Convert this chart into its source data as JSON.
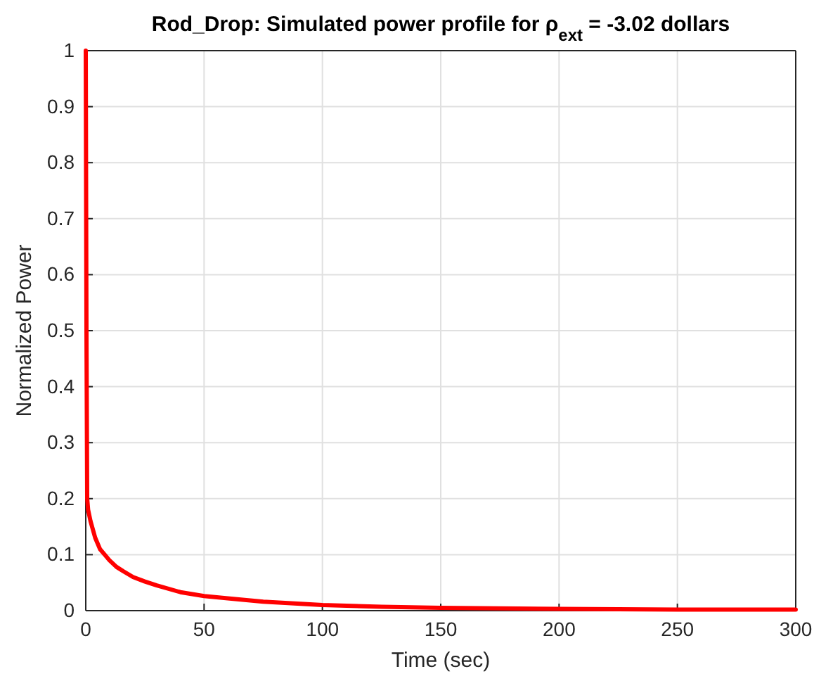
{
  "chart_data": {
    "type": "line",
    "title": "Rod_Drop: Simulated power profile for ρ$_{ext}$ = -3.02 dollars",
    "xlabel": "Time (sec)",
    "ylabel": "Normalized Power",
    "x": [
      0,
      0.3,
      0.6,
      1,
      2,
      4,
      6,
      8,
      10,
      13,
      16,
      20,
      25,
      30,
      40,
      50,
      60,
      75,
      100,
      125,
      150,
      200,
      250,
      300
    ],
    "series": [
      {
        "color": "#ff0000",
        "values": [
          1,
          0.5,
          0.2,
          0.18,
          0.16,
          0.13,
          0.11,
          0.1,
          0.09,
          0.078,
          0.07,
          0.06,
          0.052,
          0.045,
          0.033,
          0.026,
          0.022,
          0.016,
          0.01,
          0.007,
          0.005,
          0.003,
          0.002,
          0.002
        ]
      }
    ],
    "xlim": [
      0,
      300
    ],
    "xticks": [
      0,
      50,
      100,
      150,
      200,
      250,
      300
    ],
    "ylim": [
      0,
      1
    ],
    "yticks": [
      0,
      {
        "value": 0.1,
        "label": "0.1"
      },
      {
        "value": 0.2,
        "label": "0.2"
      },
      {
        "value": 0.3,
        "label": "0.3"
      },
      {
        "value": 0.4,
        "label": "0.4"
      },
      {
        "value": 0.5,
        "label": "0.5"
      },
      {
        "value": 0.6,
        "label": "0.6"
      },
      {
        "value": 0.7,
        "label": "0.7"
      },
      {
        "value": 0.8,
        "label": "0.8"
      },
      {
        "value": 0.9,
        "label": "0.9"
      },
      1
    ],
    "grid": true,
    "marker": "none",
    "line_style": "solid"
  }
}
